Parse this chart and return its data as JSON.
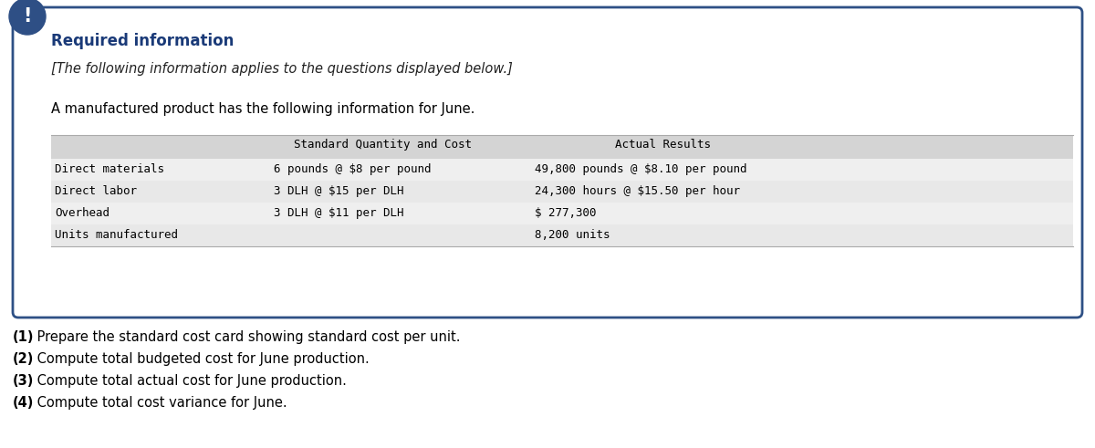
{
  "required_info_title": "Required information",
  "italic_subtitle": "[The following information applies to the questions displayed below.]",
  "intro_text": "A manufactured product has the following information for June.",
  "table_header_col2": "Standard Quantity and Cost",
  "table_header_col3": "Actual Results",
  "table_rows": [
    [
      "Direct materials",
      "6 pounds @ $8 per pound",
      "49,800 pounds @ $8.10 per pound"
    ],
    [
      "Direct labor",
      "3 DLH @ $15 per DLH",
      "24,300 hours @ $15.50 per hour"
    ],
    [
      "Overhead",
      "3 DLH @ $11 per DLH",
      "$ 277,300"
    ],
    [
      "Units manufactured",
      "",
      "8,200 units"
    ]
  ],
  "questions": [
    [
      "(1)",
      " Prepare the standard cost card showing standard cost per unit."
    ],
    [
      "(2)",
      " Compute total budgeted cost for June production."
    ],
    [
      "(3)",
      " Compute total actual cost for June production."
    ],
    [
      "(4)",
      " Compute total cost variance for June."
    ]
  ],
  "header_bg": "#d4d4d4",
  "row_bg_odd": "#efefef",
  "row_bg_even": "#e8e8e8",
  "border_color": "#2e5085",
  "icon_bg": "#2e4f85",
  "title_color": "#1a3a78",
  "text_color": "#000000",
  "fig_bg": "#ffffff",
  "fig_w": 12.0,
  "fig_h": 4.91,
  "dpi": 100
}
